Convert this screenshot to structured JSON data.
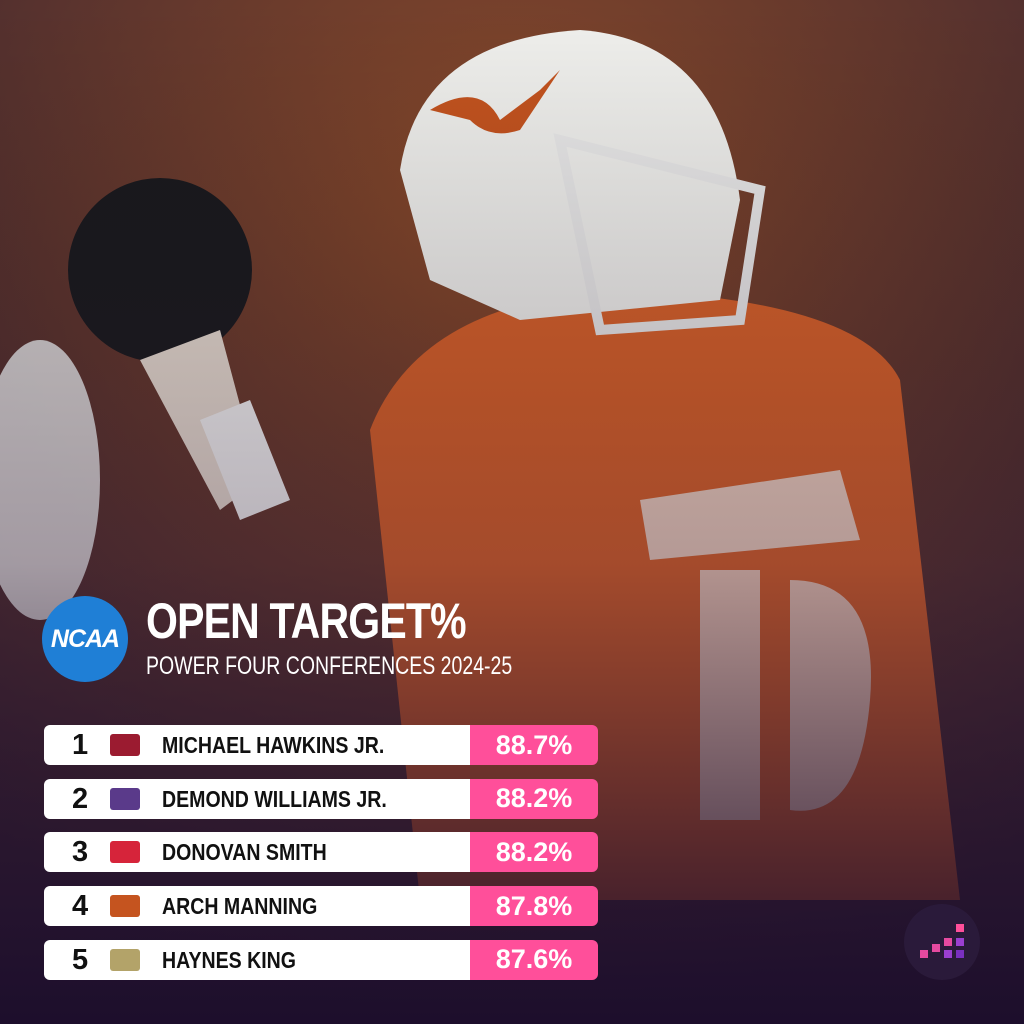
{
  "header": {
    "logo": "NCAA",
    "title": "OPEN TARGET%",
    "subtitle": "POWER FOUR CONFERENCES 2024-25"
  },
  "table": {
    "rows": [
      {
        "rank": 1,
        "name": "MICHAEL HAWKINS JR.",
        "value": "88.7%"
      },
      {
        "rank": 2,
        "name": "DEMOND WILLIAMS JR.",
        "value": "88.2%"
      },
      {
        "rank": 3,
        "name": "DONOVAN SMITH",
        "value": "88.2%"
      },
      {
        "rank": 4,
        "name": "ARCH MANNING",
        "value": "87.8%"
      },
      {
        "rank": 5,
        "name": "HAYNES KING",
        "value": "87.6%"
      }
    ]
  }
}
